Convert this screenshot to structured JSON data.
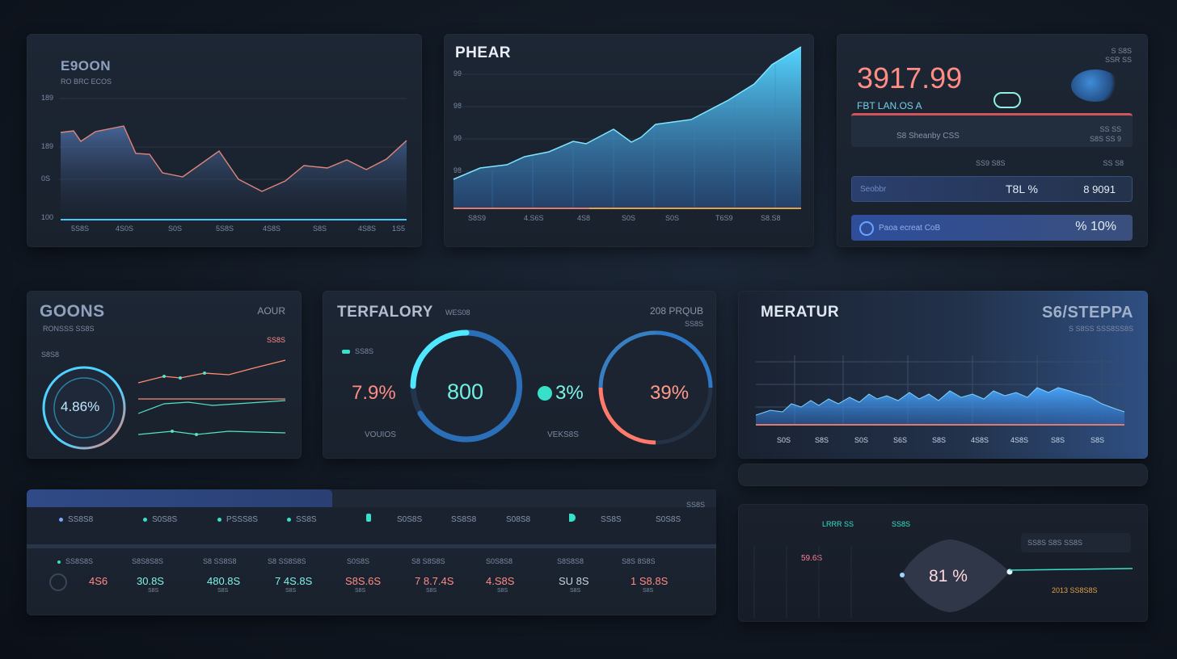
{
  "colors": {
    "accent": "#4fd2ff",
    "coral": "#ff7a6b",
    "teal": "#37e0c8",
    "text": "#9aa8bd"
  },
  "panel1": {
    "title": "E9OON",
    "subtitle": "​RO BRC ECOS",
    "y_labels": [
      "189",
      "189",
      "0S",
      "100"
    ],
    "x_labels": [
      "5S8S",
      "4S0S",
      "S0S",
      "5S8S",
      "4S8S",
      "S8S",
      "4S8S",
      "1S5"
    ]
  },
  "panel2": {
    "title": "PHEAR",
    "y_labels": [
      "99",
      "98",
      "99",
      "98"
    ],
    "x_labels": [
      "S8S9",
      "4.S6S",
      "4S8",
      "S0S",
      "S0S",
      "T6S9",
      "S8.S8"
    ]
  },
  "panel3": {
    "big_value": "3917.99",
    "label": "FBT LAN.OS A",
    "top_right": "S S8S",
    "top_right2": "SSR SS",
    "row_label": "S8 Sheanby CSS",
    "row_right_top": "SS SS",
    "row_right_bottom": "S8S SS 9",
    "mid_label_left": "SS9 S8S",
    "mid_label_right": "SS S8",
    "bar1_label": "Seobbr",
    "bar1_mid": "T8L %",
    "bar1_value": "8 9091",
    "bar2_label": "Paoa ecreat CoB",
    "bar2_value": "% 10%"
  },
  "panel4": {
    "title": "GOONS",
    "subtitle": "RONSSS SS8S",
    "top_right": "AOUR",
    "top_right2": "SS8S",
    "left_label": "S8S8",
    "gauge_value": "4.86%"
  },
  "panel5": {
    "title": "TERFALORY",
    "title_small": "WES08",
    "top_right": "208 PRQUB",
    "top_right2": "SS8S",
    "legend_label": "SS8S",
    "value_left": "7.9%",
    "gauge1_value": "800",
    "value_mid": "3%",
    "gauge2_value": "39%",
    "bottom_left": "VOUIOS",
    "bottom_mid": "VEKS8S"
  },
  "panel6": {
    "title": "MERATUR",
    "title_right": "S6/STEPPA",
    "subtitle_right": "S S8SS SSS8SS8S",
    "x_labels": [
      "S0S",
      "S8S",
      "S0S",
      "S6S",
      "S8S",
      "4S8S",
      "4S8S",
      "S8S",
      "S8S"
    ]
  },
  "table": {
    "header_right": "SS8S",
    "filters": [
      "SS8S8",
      "S0S8S",
      "PSSS8S",
      "SS8S",
      "S0S8S",
      "SS8S8",
      "S08S8",
      "SS8S",
      "S0S8S"
    ],
    "columns": [
      "SS8S8S",
      "S8S8S8S",
      "S8 SS8S8",
      "S8 SS8S8S",
      "S0S8S",
      "S8 S8S8S",
      "S0S8S8",
      "S8S8S8",
      "S8S 8S8S"
    ],
    "values": [
      "4S6",
      "30.8S",
      "480.8S",
      "7 4S.8S",
      "S8S.6S",
      "7 8.7.4S",
      "4.S8S",
      "SU 8S",
      "1 S8.8S"
    ],
    "subs": [
      "",
      "S8S",
      "S8S",
      "S8S",
      "S8S",
      "S8S",
      "S8S",
      "S8S",
      "S8S"
    ]
  },
  "panel7": {
    "top_left": "LRRR SS",
    "top_mid": "SS8S",
    "left_value": "59.6S",
    "center_value": "81 %",
    "right_box": "SS8S S8S SS8S",
    "right_small": "2013 SS8S8S"
  }
}
